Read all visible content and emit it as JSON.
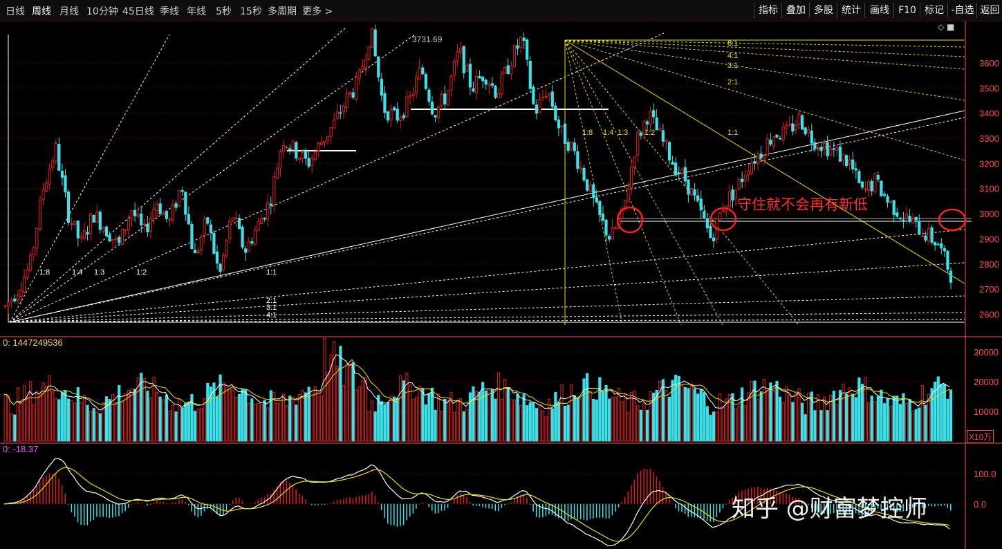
{
  "toolbar": {
    "periods": [
      "日线",
      "周线",
      "月线",
      "10分钟",
      "45日线",
      "季线",
      "年线",
      "5秒",
      "15秒",
      "多周期",
      "更多 >"
    ],
    "active_period": "周线",
    "actions": [
      "指标",
      "叠加",
      "多股",
      "统计",
      "画线",
      "F10",
      "标记",
      "-自选",
      "返回"
    ]
  },
  "corner_icons": "◇ ■",
  "colors": {
    "up": "#e02020",
    "down": "#3fe0e8",
    "axis": "#ff4d4d",
    "grid": "#5a0000",
    "ma_white": "#ffffff",
    "ma_yellow": "#e8e000"
  },
  "annotation_text": "守住就不会再有新低",
  "watermark_text": "知乎 @财富梦控师",
  "peak_label": "3731.69",
  "volume_indicator_label": "0: 1447249536",
  "volume_unit": "X10万",
  "macd_indicator_label": "0: -18.37",
  "fan_labels_left": [
    "1:8",
    "1:4",
    "1:3",
    "1:2",
    "1:1",
    "2:1",
    "3:1",
    "4:1"
  ],
  "fan_labels_right": [
    "1:8",
    "1:4",
    "1:3",
    "1:2",
    "1:1",
    "2:1",
    "3:1",
    "4:1",
    "8:1"
  ],
  "chart_data": [
    {
      "type": "candlestick",
      "title": "",
      "y_ticks": [
        3600,
        3500,
        3400,
        3300,
        3200,
        3100,
        3000,
        2900,
        2800,
        2700,
        2600
      ],
      "ylim": [
        2530,
        3740
      ],
      "peak_value": 3731.69,
      "support_level": 2890,
      "path_points": [
        2630,
        2700,
        2800,
        3100,
        3260,
        3000,
        2880,
        3000,
        2940,
        2870,
        3020,
        2920,
        3050,
        2960,
        3120,
        2820,
        2980,
        2750,
        3000,
        2850,
        2950,
        3050,
        3300,
        3250,
        3200,
        3280,
        3350,
        3450,
        3520,
        3731,
        3420,
        3380,
        3440,
        3580,
        3400,
        3470,
        3650,
        3500,
        3560,
        3480,
        3600,
        3700,
        3400,
        3500,
        3330,
        3260,
        3140,
        3000,
        2900,
        3000,
        3280,
        3400,
        3300,
        3200,
        3130,
        3020,
        2900,
        3040,
        3100,
        3200,
        3250,
        3320,
        3320,
        3380,
        3300,
        3270,
        3240,
        3200,
        3080,
        3130,
        3050,
        3000,
        2960,
        2920,
        2880,
        2760
      ],
      "grid": true
    },
    {
      "type": "bar",
      "title": "",
      "y_ticks": [
        30000,
        20000,
        10000
      ],
      "ylim": [
        0,
        33000
      ]
    },
    {
      "type": "bar",
      "title": "",
      "y_ticks": [
        100.0,
        0.0
      ],
      "ylim": [
        -140,
        180
      ]
    }
  ]
}
